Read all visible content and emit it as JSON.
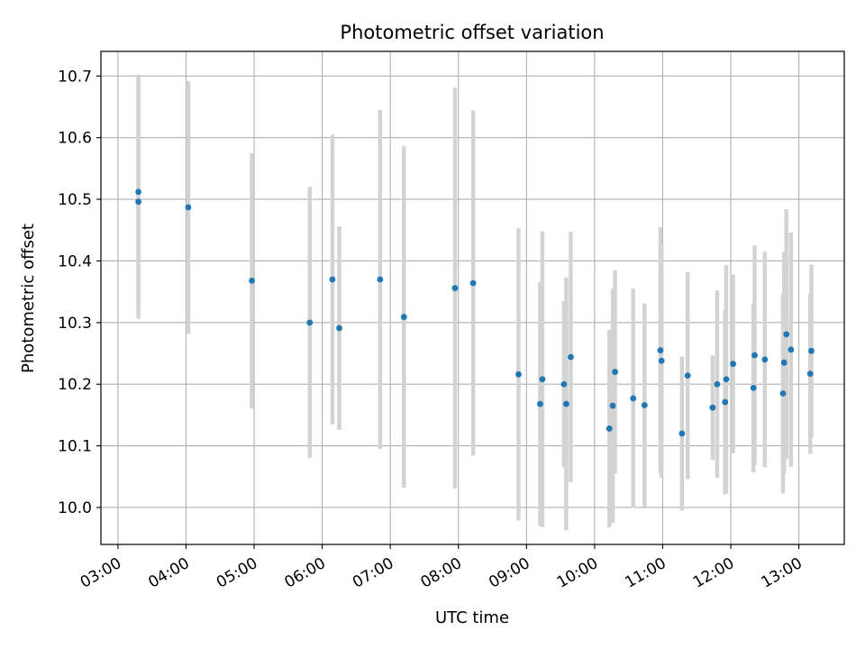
{
  "chart_data": {
    "type": "scatter",
    "title": "Photometric offset variation",
    "xlabel": "UTC time",
    "ylabel": "Photometric offset",
    "x_unit": "UTC time (HH:MM)",
    "xlim": [
      "02:45",
      "13:40"
    ],
    "ylim": [
      9.94,
      10.74
    ],
    "xticks": [
      "03:00",
      "04:00",
      "05:00",
      "06:00",
      "07:00",
      "08:00",
      "09:00",
      "10:00",
      "11:00",
      "12:00",
      "13:00"
    ],
    "yticks": [
      10.0,
      10.1,
      10.2,
      10.3,
      10.4,
      10.5,
      10.6,
      10.7
    ],
    "grid": true,
    "legend": "none",
    "colors": {
      "point": "#1f77b4",
      "errorbar": "#d3d3d3",
      "grid": "#b0b0b0"
    },
    "points": [
      {
        "x": "03:18",
        "y": 10.512,
        "err": 0.19
      },
      {
        "x": "03:18",
        "y": 10.496,
        "err": 0.19
      },
      {
        "x": "04:02",
        "y": 10.487,
        "err": 0.205
      },
      {
        "x": "04:58",
        "y": 10.368,
        "err": 0.207
      },
      {
        "x": "05:49",
        "y": 10.3,
        "err": 0.22
      },
      {
        "x": "06:09",
        "y": 10.37,
        "err": 0.235
      },
      {
        "x": "06:15",
        "y": 10.291,
        "err": 0.165
      },
      {
        "x": "06:51",
        "y": 10.37,
        "err": 0.275
      },
      {
        "x": "07:12",
        "y": 10.309,
        "err": 0.277
      },
      {
        "x": "07:57",
        "y": 10.356,
        "err": 0.325
      },
      {
        "x": "08:13",
        "y": 10.364,
        "err": 0.28
      },
      {
        "x": "08:53",
        "y": 10.216,
        "err": 0.237
      },
      {
        "x": "09:12",
        "y": 10.168,
        "err": 0.198
      },
      {
        "x": "09:14",
        "y": 10.208,
        "err": 0.24
      },
      {
        "x": "09:33",
        "y": 10.2,
        "err": 0.135
      },
      {
        "x": "09:35",
        "y": 10.168,
        "err": 0.205
      },
      {
        "x": "09:39",
        "y": 10.244,
        "err": 0.203
      },
      {
        "x": "10:13",
        "y": 10.128,
        "err": 0.16
      },
      {
        "x": "10:16",
        "y": 10.165,
        "err": 0.19
      },
      {
        "x": "10:18",
        "y": 10.22,
        "err": 0.165
      },
      {
        "x": "10:34",
        "y": 10.177,
        "err": 0.178
      },
      {
        "x": "10:44",
        "y": 10.166,
        "err": 0.165
      },
      {
        "x": "10:58",
        "y": 10.255,
        "err": 0.2
      },
      {
        "x": "10:59",
        "y": 10.238,
        "err": 0.19
      },
      {
        "x": "11:17",
        "y": 10.12,
        "err": 0.125
      },
      {
        "x": "11:22",
        "y": 10.214,
        "err": 0.168
      },
      {
        "x": "11:44",
        "y": 10.162,
        "err": 0.085
      },
      {
        "x": "11:48",
        "y": 10.2,
        "err": 0.152
      },
      {
        "x": "11:55",
        "y": 10.171,
        "err": 0.15
      },
      {
        "x": "11:56",
        "y": 10.208,
        "err": 0.185
      },
      {
        "x": "12:02",
        "y": 10.233,
        "err": 0.145
      },
      {
        "x": "12:20",
        "y": 10.194,
        "err": 0.137
      },
      {
        "x": "12:21",
        "y": 10.247,
        "err": 0.178
      },
      {
        "x": "12:30",
        "y": 10.24,
        "err": 0.175
      },
      {
        "x": "12:46",
        "y": 10.185,
        "err": 0.162
      },
      {
        "x": "12:47",
        "y": 10.235,
        "err": 0.18
      },
      {
        "x": "12:49",
        "y": 10.281,
        "err": 0.203
      },
      {
        "x": "12:53",
        "y": 10.256,
        "err": 0.19
      },
      {
        "x": "13:10",
        "y": 10.217,
        "err": 0.13
      },
      {
        "x": "13:11",
        "y": 10.254,
        "err": 0.14
      }
    ]
  }
}
